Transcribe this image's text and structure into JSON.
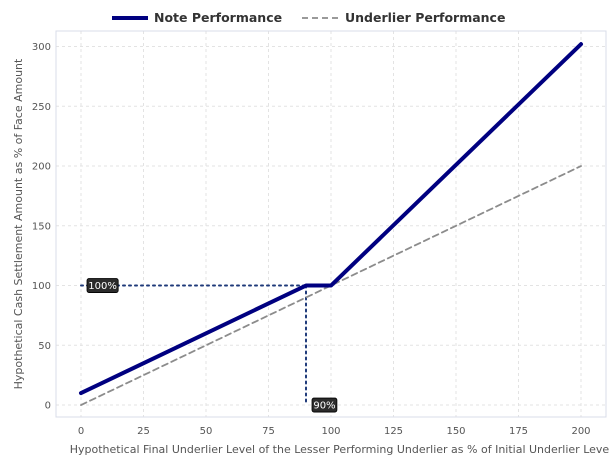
{
  "chart_data": {
    "type": "line",
    "xlabel": "Hypothetical Final Underlier Level of the Lesser Performing Underlier as % of Initial Underlier Level",
    "ylabel": "Hypothetical Cash Settlement Amount as % of Face Amount",
    "xlim": [
      -10,
      210
    ],
    "ylim": [
      -10,
      313
    ],
    "xticks": [
      0,
      25,
      50,
      75,
      100,
      125,
      150,
      175,
      200
    ],
    "yticks": [
      0,
      50,
      100,
      150,
      200,
      250,
      300
    ],
    "grid": true,
    "legend": "top-center",
    "series": [
      {
        "name": "Note Performance",
        "color": "#000080",
        "style": "solid",
        "x": [
          0,
          90,
          100,
          200
        ],
        "y": [
          10,
          100,
          100,
          302
        ]
      },
      {
        "name": "Underlier Performance",
        "color": "#8c8c8c",
        "style": "dashed",
        "x": [
          0,
          200
        ],
        "y": [
          0,
          200
        ]
      }
    ],
    "reference_lines": [
      {
        "from": [
          0,
          100
        ],
        "to": [
          90,
          100
        ],
        "style": "dotted"
      },
      {
        "from": [
          90,
          100
        ],
        "to": [
          90,
          0
        ],
        "style": "dotted"
      }
    ],
    "annotations": [
      {
        "text": "100%",
        "x": 0,
        "y": 100
      },
      {
        "text": "90%",
        "x": 90,
        "y": 0
      }
    ]
  }
}
